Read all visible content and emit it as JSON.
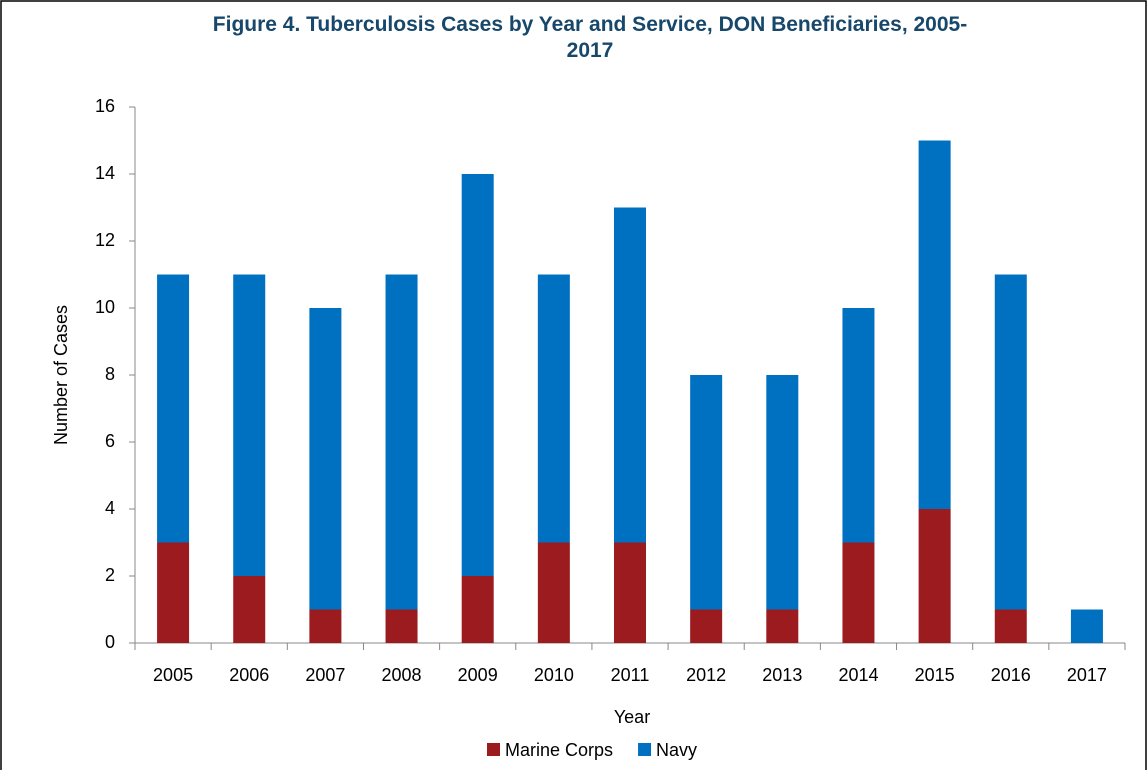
{
  "chart_data": {
    "type": "stacked_bar",
    "title": "Figure 4. Tuberculosis Cases by Year and Service, DON Beneficiaries, 2005-2017",
    "x_label": "Year",
    "y_label": "Number of Cases",
    "categories": [
      "2005",
      "2006",
      "2007",
      "2008",
      "2009",
      "2010",
      "2011",
      "2012",
      "2013",
      "2014",
      "2015",
      "2016",
      "2017"
    ],
    "series": [
      {
        "name": "Marine Corps",
        "color": "#9b1b1f",
        "values": [
          3,
          2,
          1,
          1,
          2,
          3,
          3,
          1,
          1,
          3,
          4,
          1,
          0
        ]
      },
      {
        "name": "Navy",
        "color": "#0070c0",
        "values": [
          8,
          9,
          9,
          10,
          12,
          8,
          10,
          7,
          7,
          7,
          11,
          10,
          1
        ]
      }
    ],
    "ylim": [
      0,
      16
    ],
    "yticks": [
      0,
      2,
      4,
      6,
      8,
      10,
      12,
      14,
      16
    ],
    "grid": false,
    "legend": "bottom"
  }
}
